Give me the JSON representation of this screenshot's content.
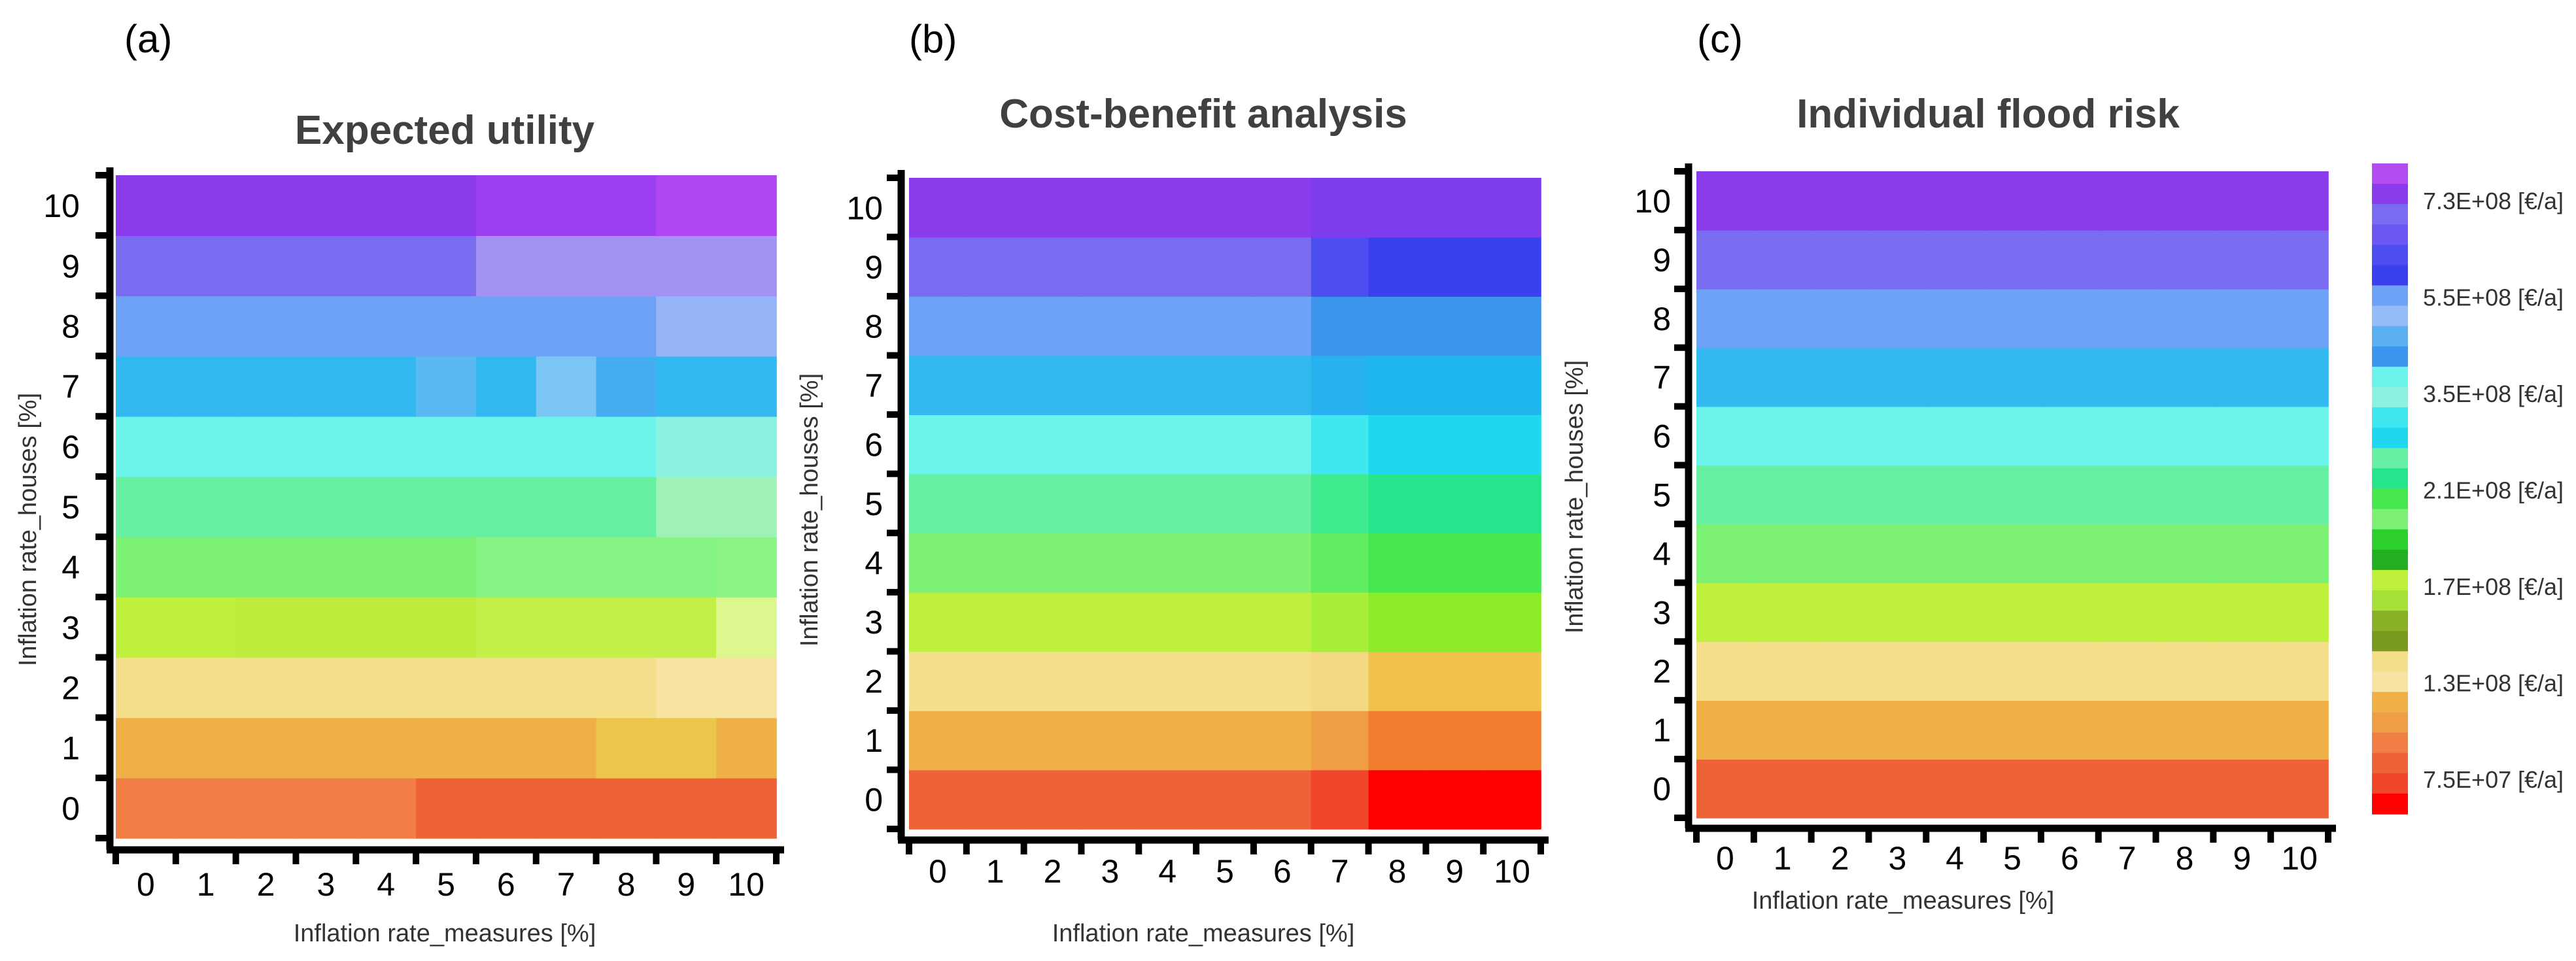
{
  "panels": [
    {
      "tag": "(a)",
      "chart_data": {
        "type": "heatmap",
        "title": "Expected utility",
        "xlabel": "Inflation rate_measures [%]",
        "ylabel": "Inflation rate_houses [%]",
        "x": [
          "0",
          "1",
          "2",
          "3",
          "4",
          "5",
          "6",
          "7",
          "8",
          "9",
          "10"
        ],
        "y": [
          "0",
          "1",
          "2",
          "3",
          "4",
          "5",
          "6",
          "7",
          "8",
          "9",
          "10"
        ],
        "cell_colors": [
          [
            "#f07e45",
            "#f07e45",
            "#f07e45",
            "#f07e45",
            "#f07e45",
            "#ee6237",
            "#ee6237",
            "#ee6237",
            "#ee6237",
            "#ee6237",
            "#ee6237"
          ],
          [
            "#efb048",
            "#efb048",
            "#efb048",
            "#efb048",
            "#efb048",
            "#efb048",
            "#efb048",
            "#efb048",
            "#ebc64a",
            "#ebc64a",
            "#efb048"
          ],
          [
            "#f5df8a",
            "#f5df8a",
            "#f5df8a",
            "#f5df8a",
            "#f5df8a",
            "#f5df8a",
            "#f5df8a",
            "#f5df8a",
            "#f5df8a",
            "#f7e4a0",
            "#f7e4a0"
          ],
          [
            "#bff03e",
            "#bff03e",
            "#bdec3d",
            "#bdec3d",
            "#bdec3d",
            "#bdec3d",
            "#c3f048",
            "#c3f048",
            "#c3f048",
            "#c3f048",
            "#dcf78e"
          ],
          [
            "#7cf174",
            "#7cf174",
            "#7cf174",
            "#7cf174",
            "#7cf174",
            "#7cf174",
            "#86f385",
            "#86f385",
            "#86f385",
            "#86f385",
            "#8cf485"
          ],
          [
            "#67f0a4",
            "#67f0a4",
            "#67f0a4",
            "#67f0a4",
            "#67f0a4",
            "#67f0a4",
            "#67f0a4",
            "#67f0a4",
            "#67f0a4",
            "#9ef2b8",
            "#9ef2b8"
          ],
          [
            "#6bf4ec",
            "#6bf4ec",
            "#6bf4ec",
            "#6bf4ec",
            "#6bf4ec",
            "#6bf4ec",
            "#6bf4ec",
            "#6bf4ec",
            "#6bf4ec",
            "#8cf2e0",
            "#8cf2e0"
          ],
          [
            "#33b9f0",
            "#33b9f0",
            "#33b9f0",
            "#33b9f0",
            "#33b9f0",
            "#5ab9f2",
            "#33b9f0",
            "#7cc6f5",
            "#44aef1",
            "#33b9f0",
            "#33b9f0"
          ],
          [
            "#6ea2f6",
            "#6ea2f6",
            "#6ea2f6",
            "#6ea2f6",
            "#6ea2f6",
            "#6ea2f6",
            "#6ea2f6",
            "#6ea2f6",
            "#6ea2f6",
            "#96b4f8",
            "#96b4f8"
          ],
          [
            "#7a6cf0",
            "#7a6cf0",
            "#7a6cf0",
            "#7a6cf0",
            "#7a6cf0",
            "#7a6cf0",
            "#a491f4",
            "#a491f4",
            "#a491f4",
            "#a491f4",
            "#a491f4"
          ],
          [
            "#8a3cec",
            "#8a3cec",
            "#8a3cec",
            "#8a3cec",
            "#8a3cec",
            "#8a3cec",
            "#9b3ff0",
            "#9b3ff0",
            "#9b3ff0",
            "#b045f2",
            "#b045f2"
          ]
        ],
        "grid": false
      }
    },
    {
      "tag": "(b)",
      "chart_data": {
        "type": "heatmap",
        "title": "Cost-benefit analysis",
        "xlabel": "Inflation rate_measures [%]",
        "ylabel": "Inflation rate_houses [%]",
        "x": [
          "0",
          "1",
          "2",
          "3",
          "4",
          "5",
          "6",
          "7",
          "8",
          "9",
          "10"
        ],
        "y": [
          "0",
          "1",
          "2",
          "3",
          "4",
          "5",
          "6",
          "7",
          "8",
          "9",
          "10"
        ],
        "cell_colors": [
          [
            "#ee6237",
            "#ee6237",
            "#ee6237",
            "#ee6237",
            "#ee6237",
            "#ee6237",
            "#ee6237",
            "#f0462a",
            "#ff0000",
            "#ff0000",
            "#ff0000"
          ],
          [
            "#efb048",
            "#efb048",
            "#efb048",
            "#efb048",
            "#efb048",
            "#efb048",
            "#efb048",
            "#f09e45",
            "#f07e2e",
            "#f07e2e",
            "#f07e2e"
          ],
          [
            "#f5df8a",
            "#f5df8a",
            "#f5df8a",
            "#f5df8a",
            "#f5df8a",
            "#f5df8a",
            "#f5df8a",
            "#f5d884",
            "#f0c24a",
            "#f0c24a",
            "#f0c24a"
          ],
          [
            "#bff03e",
            "#bff03e",
            "#bff03e",
            "#bff03e",
            "#bff03e",
            "#bff03e",
            "#bff03e",
            "#a8ef3b",
            "#8ceb2a",
            "#8ceb2a",
            "#8ceb2a"
          ],
          [
            "#7cf174",
            "#7cf174",
            "#7cf174",
            "#7cf174",
            "#7cf174",
            "#7cf174",
            "#7cf174",
            "#62ec62",
            "#46e84e",
            "#46e84e",
            "#46e84e"
          ],
          [
            "#67f0a4",
            "#67f0a4",
            "#67f0a4",
            "#67f0a4",
            "#67f0a4",
            "#67f0a4",
            "#67f0a4",
            "#40ea8e",
            "#26e48c",
            "#26e48c",
            "#26e48c"
          ],
          [
            "#6bf4ec",
            "#6bf4ec",
            "#6bf4ec",
            "#6bf4ec",
            "#6bf4ec",
            "#6bf4ec",
            "#6bf4ec",
            "#3fe7ef",
            "#1ed8ee",
            "#1ed8ee",
            "#1ed8ee"
          ],
          [
            "#33b9f0",
            "#33b9f0",
            "#33b9f0",
            "#33b9f0",
            "#33b9f0",
            "#33b9f0",
            "#33b9f0",
            "#27b2ef",
            "#1eb6ec",
            "#1eb6ec",
            "#1eb6ec"
          ],
          [
            "#6ea2f6",
            "#6ea2f6",
            "#6ea2f6",
            "#6ea2f6",
            "#6ea2f6",
            "#6ea2f6",
            "#6ea2f6",
            "#3e95ee",
            "#3e95ee",
            "#3e95ee",
            "#3e95ee"
          ],
          [
            "#7a6cf0",
            "#7a6cf0",
            "#7a6cf0",
            "#7a6cf0",
            "#7a6cf0",
            "#7a6cf0",
            "#7a6cf0",
            "#4c4ef0",
            "#3a40ee",
            "#3a40ee",
            "#3a40ee"
          ],
          [
            "#8a3cec",
            "#8a3cec",
            "#8a3cec",
            "#8a3cec",
            "#8a3cec",
            "#8a3cec",
            "#8a3cec",
            "#7e3cec",
            "#7e3cec",
            "#7e3cec",
            "#7e3cec"
          ]
        ],
        "grid": false
      }
    },
    {
      "tag": "(c)",
      "chart_data": {
        "type": "heatmap",
        "title": "Individual flood risk",
        "xlabel": "Inflation rate_measures [%]",
        "ylabel": "Inflation rate_houses [%]",
        "x": [
          "0",
          "1",
          "2",
          "3",
          "4",
          "5",
          "6",
          "7",
          "8",
          "9",
          "10"
        ],
        "y": [
          "0",
          "1",
          "2",
          "3",
          "4",
          "5",
          "6",
          "7",
          "8",
          "9",
          "10"
        ],
        "cell_colors": [
          [
            "#ee6237",
            "#ee6237",
            "#ee6237",
            "#ee6237",
            "#ee6237",
            "#ee6237",
            "#ee6237",
            "#ee6237",
            "#ee6237",
            "#ee6237",
            "#ee6237"
          ],
          [
            "#efb048",
            "#efb048",
            "#efb048",
            "#efb048",
            "#efb048",
            "#efb048",
            "#efb048",
            "#efb048",
            "#efb048",
            "#efb048",
            "#efb048"
          ],
          [
            "#f5df8a",
            "#f5df8a",
            "#f5df8a",
            "#f5df8a",
            "#f5df8a",
            "#f5df8a",
            "#f5df8a",
            "#f5df8a",
            "#f5df8a",
            "#f5df8a",
            "#f5df8a"
          ],
          [
            "#bff03e",
            "#bff03e",
            "#bff03e",
            "#bff03e",
            "#bff03e",
            "#bff03e",
            "#bff03e",
            "#bff03e",
            "#bff03e",
            "#bff03e",
            "#bff03e"
          ],
          [
            "#7cf174",
            "#7cf174",
            "#7cf174",
            "#7cf174",
            "#7cf174",
            "#7cf174",
            "#7cf174",
            "#7cf174",
            "#7cf174",
            "#7cf174",
            "#7cf174"
          ],
          [
            "#67f0a4",
            "#67f0a4",
            "#67f0a4",
            "#67f0a4",
            "#67f0a4",
            "#67f0a4",
            "#67f0a4",
            "#67f0a4",
            "#67f0a4",
            "#67f0a4",
            "#67f0a4"
          ],
          [
            "#6bf4ec",
            "#6bf4ec",
            "#6bf4ec",
            "#6bf4ec",
            "#6bf4ec",
            "#6bf4ec",
            "#6bf4ec",
            "#6bf4ec",
            "#6bf4ec",
            "#6bf4ec",
            "#6bf4ec"
          ],
          [
            "#33b9f0",
            "#33b9f0",
            "#33b9f0",
            "#33b9f0",
            "#33b9f0",
            "#33b9f0",
            "#33b9f0",
            "#33b9f0",
            "#33b9f0",
            "#33b9f0",
            "#33b9f0"
          ],
          [
            "#6ea2f6",
            "#6ea2f6",
            "#6ea2f6",
            "#6ea2f6",
            "#6ea2f6",
            "#6ea2f6",
            "#6ea2f6",
            "#6ea2f6",
            "#6ea2f6",
            "#6ea2f6",
            "#6ea2f6"
          ],
          [
            "#7a6cf0",
            "#7a6cf0",
            "#7a6cf0",
            "#7a6cf0",
            "#7a6cf0",
            "#7a6cf0",
            "#7a6cf0",
            "#7a6cf0",
            "#7a6cf0",
            "#7a6cf0",
            "#7a6cf0"
          ],
          [
            "#8a3cec",
            "#8a3cec",
            "#8a3cec",
            "#8a3cec",
            "#8a3cec",
            "#8a3cec",
            "#8a3cec",
            "#8a3cec",
            "#8a3cec",
            "#8a3cec",
            "#8a3cec"
          ]
        ],
        "grid": false
      }
    }
  ],
  "colorbar": {
    "stops_top_to_bottom": [
      "#b24cf0",
      "#8a3cec",
      "#7a6cf0",
      "#6a58f0",
      "#4c4ef0",
      "#3a40ee",
      "#6ea2f6",
      "#94bcf8",
      "#5ab0f2",
      "#3e95ee",
      "#6bf4ec",
      "#8cf2e0",
      "#3fe7ef",
      "#1ed8ee",
      "#67f0a4",
      "#26e48c",
      "#46e84e",
      "#7cf174",
      "#2ed02e",
      "#22b022",
      "#bff03e",
      "#a8e03a",
      "#8ab028",
      "#7a9a20",
      "#f5df8a",
      "#f7e4a0",
      "#efb048",
      "#f09e45",
      "#f07e45",
      "#ee6237",
      "#f0462a",
      "#ff0000"
    ],
    "ticks": [
      {
        "label": "7.3E+08",
        "unit": "[€/a]"
      },
      {
        "label": "5.5E+08",
        "unit": "[€/a]"
      },
      {
        "label": "3.5E+08",
        "unit": "[€/a]"
      },
      {
        "label": "2.1E+08",
        "unit": "[€/a]"
      },
      {
        "label": "1.7E+08",
        "unit": "[€/a]"
      },
      {
        "label": "1.3E+08",
        "unit": "[€/a]"
      },
      {
        "label": "7.5E+07",
        "unit": "[€/a]"
      }
    ]
  }
}
